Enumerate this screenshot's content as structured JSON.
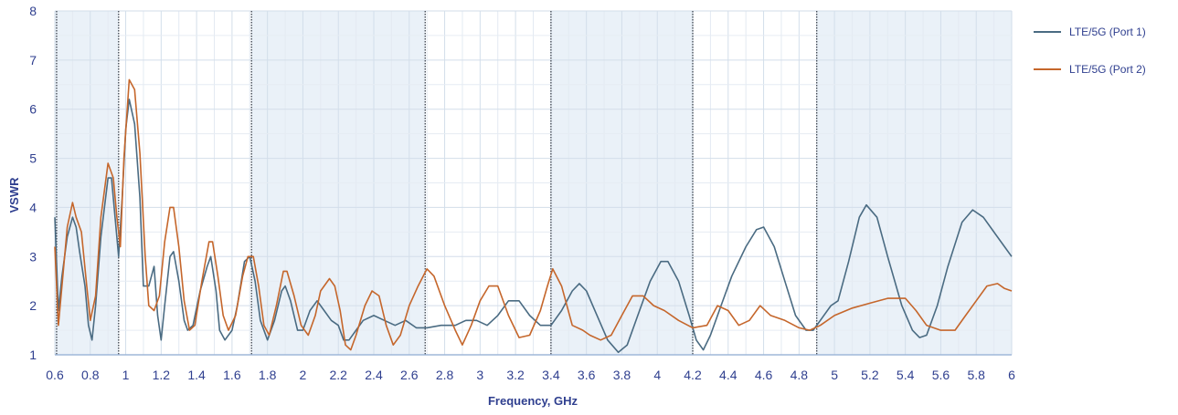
{
  "chart_data": {
    "type": "line",
    "title": "",
    "xlabel": "Frequency, GHz",
    "ylabel": "VSWR",
    "xlim": [
      0.6,
      6.0
    ],
    "ylim": [
      1,
      8
    ],
    "x_ticks": [
      "0.6",
      "0.8",
      "1",
      "1.2",
      "1.4",
      "1.6",
      "1.8",
      "2",
      "2.2",
      "2.4",
      "2.6",
      "2.8",
      "3",
      "3.2",
      "3.4",
      "3.6",
      "3.8",
      "4",
      "4.2",
      "4.4",
      "4.6",
      "4.8",
      "5",
      "5.2",
      "5.4",
      "5.6",
      "5.8",
      "6"
    ],
    "y_ticks": [
      "1",
      "2",
      "3",
      "4",
      "5",
      "6",
      "7",
      "8"
    ],
    "grid": true,
    "legend_position": "right",
    "shaded_bands": [
      [
        0.6,
        0.96
      ],
      [
        1.71,
        2.69
      ],
      [
        3.4,
        4.2
      ],
      [
        4.9,
        6.0
      ]
    ],
    "band_edges": [
      0.61,
      0.96,
      1.71,
      2.69,
      3.4,
      4.2,
      4.9
    ],
    "series": [
      {
        "name": "LTE/5G (Port 1)",
        "color": "#4a6b82",
        "points": [
          [
            0.6,
            3.8
          ],
          [
            0.62,
            1.9
          ],
          [
            0.64,
            2.6
          ],
          [
            0.67,
            3.4
          ],
          [
            0.7,
            3.8
          ],
          [
            0.72,
            3.6
          ],
          [
            0.74,
            3.1
          ],
          [
            0.77,
            2.4
          ],
          [
            0.79,
            1.6
          ],
          [
            0.81,
            1.3
          ],
          [
            0.83,
            2.0
          ],
          [
            0.86,
            3.4
          ],
          [
            0.9,
            4.6
          ],
          [
            0.92,
            4.6
          ],
          [
            0.94,
            3.8
          ],
          [
            0.96,
            3.0
          ],
          [
            0.98,
            4.2
          ],
          [
            1.0,
            5.6
          ],
          [
            1.02,
            6.2
          ],
          [
            1.05,
            5.7
          ],
          [
            1.08,
            4.2
          ],
          [
            1.1,
            2.4
          ],
          [
            1.13,
            2.4
          ],
          [
            1.16,
            2.8
          ],
          [
            1.18,
            1.8
          ],
          [
            1.2,
            1.3
          ],
          [
            1.22,
            2.0
          ],
          [
            1.25,
            3.0
          ],
          [
            1.27,
            3.1
          ],
          [
            1.3,
            2.5
          ],
          [
            1.33,
            1.7
          ],
          [
            1.35,
            1.5
          ],
          [
            1.38,
            1.6
          ],
          [
            1.42,
            2.3
          ],
          [
            1.46,
            2.8
          ],
          [
            1.48,
            3.0
          ],
          [
            1.51,
            2.3
          ],
          [
            1.53,
            1.5
          ],
          [
            1.56,
            1.3
          ],
          [
            1.6,
            1.5
          ],
          [
            1.63,
            2.0
          ],
          [
            1.67,
            2.9
          ],
          [
            1.7,
            3.0
          ],
          [
            1.73,
            2.5
          ],
          [
            1.76,
            1.7
          ],
          [
            1.8,
            1.3
          ],
          [
            1.84,
            1.7
          ],
          [
            1.88,
            2.3
          ],
          [
            1.9,
            2.4
          ],
          [
            1.93,
            2.1
          ],
          [
            1.97,
            1.5
          ],
          [
            2.0,
            1.5
          ],
          [
            2.04,
            1.9
          ],
          [
            2.08,
            2.1
          ],
          [
            2.12,
            1.9
          ],
          [
            2.16,
            1.7
          ],
          [
            2.2,
            1.6
          ],
          [
            2.23,
            1.3
          ],
          [
            2.26,
            1.3
          ],
          [
            2.3,
            1.5
          ],
          [
            2.34,
            1.7
          ],
          [
            2.4,
            1.8
          ],
          [
            2.46,
            1.7
          ],
          [
            2.52,
            1.6
          ],
          [
            2.58,
            1.7
          ],
          [
            2.64,
            1.55
          ],
          [
            2.7,
            1.55
          ],
          [
            2.78,
            1.6
          ],
          [
            2.86,
            1.6
          ],
          [
            2.92,
            1.7
          ],
          [
            2.98,
            1.7
          ],
          [
            3.04,
            1.6
          ],
          [
            3.1,
            1.8
          ],
          [
            3.16,
            2.1
          ],
          [
            3.22,
            2.1
          ],
          [
            3.28,
            1.8
          ],
          [
            3.34,
            1.6
          ],
          [
            3.4,
            1.6
          ],
          [
            3.46,
            1.9
          ],
          [
            3.52,
            2.3
          ],
          [
            3.56,
            2.45
          ],
          [
            3.6,
            2.3
          ],
          [
            3.66,
            1.8
          ],
          [
            3.72,
            1.3
          ],
          [
            3.78,
            1.05
          ],
          [
            3.83,
            1.2
          ],
          [
            3.9,
            1.9
          ],
          [
            3.96,
            2.5
          ],
          [
            4.02,
            2.9
          ],
          [
            4.06,
            2.9
          ],
          [
            4.12,
            2.5
          ],
          [
            4.18,
            1.8
          ],
          [
            4.22,
            1.3
          ],
          [
            4.26,
            1.1
          ],
          [
            4.3,
            1.4
          ],
          [
            4.36,
            2.0
          ],
          [
            4.42,
            2.6
          ],
          [
            4.5,
            3.2
          ],
          [
            4.56,
            3.55
          ],
          [
            4.6,
            3.6
          ],
          [
            4.66,
            3.2
          ],
          [
            4.72,
            2.5
          ],
          [
            4.78,
            1.8
          ],
          [
            4.84,
            1.5
          ],
          [
            4.88,
            1.5
          ],
          [
            4.92,
            1.7
          ],
          [
            4.98,
            2.0
          ],
          [
            5.02,
            2.1
          ],
          [
            5.08,
            2.9
          ],
          [
            5.14,
            3.8
          ],
          [
            5.18,
            4.05
          ],
          [
            5.24,
            3.8
          ],
          [
            5.3,
            3.0
          ],
          [
            5.38,
            2.0
          ],
          [
            5.44,
            1.5
          ],
          [
            5.48,
            1.35
          ],
          [
            5.52,
            1.4
          ],
          [
            5.58,
            2.0
          ],
          [
            5.64,
            2.8
          ],
          [
            5.72,
            3.7
          ],
          [
            5.78,
            3.95
          ],
          [
            5.84,
            3.8
          ],
          [
            5.9,
            3.5
          ],
          [
            5.96,
            3.2
          ],
          [
            6.0,
            3.0
          ]
        ]
      },
      {
        "name": "LTE/5G (Port 2)",
        "color": "#c5662b",
        "points": [
          [
            0.6,
            3.2
          ],
          [
            0.62,
            1.6
          ],
          [
            0.64,
            2.4
          ],
          [
            0.67,
            3.6
          ],
          [
            0.7,
            4.1
          ],
          [
            0.72,
            3.8
          ],
          [
            0.75,
            3.5
          ],
          [
            0.78,
            2.4
          ],
          [
            0.8,
            1.7
          ],
          [
            0.83,
            2.2
          ],
          [
            0.86,
            3.8
          ],
          [
            0.9,
            4.9
          ],
          [
            0.93,
            4.6
          ],
          [
            0.95,
            3.8
          ],
          [
            0.97,
            3.2
          ],
          [
            0.99,
            5.0
          ],
          [
            1.02,
            6.6
          ],
          [
            1.05,
            6.4
          ],
          [
            1.08,
            5.1
          ],
          [
            1.11,
            3.0
          ],
          [
            1.13,
            2.0
          ],
          [
            1.16,
            1.9
          ],
          [
            1.19,
            2.2
          ],
          [
            1.22,
            3.3
          ],
          [
            1.25,
            4.0
          ],
          [
            1.27,
            4.0
          ],
          [
            1.3,
            3.2
          ],
          [
            1.33,
            2.1
          ],
          [
            1.36,
            1.5
          ],
          [
            1.39,
            1.6
          ],
          [
            1.43,
            2.5
          ],
          [
            1.47,
            3.3
          ],
          [
            1.49,
            3.3
          ],
          [
            1.52,
            2.6
          ],
          [
            1.55,
            1.8
          ],
          [
            1.58,
            1.5
          ],
          [
            1.62,
            1.8
          ],
          [
            1.66,
            2.6
          ],
          [
            1.69,
            3.0
          ],
          [
            1.72,
            3.0
          ],
          [
            1.75,
            2.4
          ],
          [
            1.78,
            1.6
          ],
          [
            1.81,
            1.4
          ],
          [
            1.85,
            2.0
          ],
          [
            1.89,
            2.7
          ],
          [
            1.91,
            2.7
          ],
          [
            1.95,
            2.2
          ],
          [
            1.99,
            1.6
          ],
          [
            2.03,
            1.4
          ],
          [
            2.07,
            1.8
          ],
          [
            2.1,
            2.3
          ],
          [
            2.15,
            2.55
          ],
          [
            2.18,
            2.4
          ],
          [
            2.21,
            1.9
          ],
          [
            2.24,
            1.2
          ],
          [
            2.27,
            1.1
          ],
          [
            2.3,
            1.4
          ],
          [
            2.35,
            2.0
          ],
          [
            2.39,
            2.3
          ],
          [
            2.43,
            2.2
          ],
          [
            2.47,
            1.6
          ],
          [
            2.51,
            1.2
          ],
          [
            2.55,
            1.4
          ],
          [
            2.6,
            2.0
          ],
          [
            2.65,
            2.4
          ],
          [
            2.7,
            2.75
          ],
          [
            2.74,
            2.6
          ],
          [
            2.8,
            2.0
          ],
          [
            2.86,
            1.5
          ],
          [
            2.9,
            1.2
          ],
          [
            2.95,
            1.6
          ],
          [
            3.0,
            2.1
          ],
          [
            3.05,
            2.4
          ],
          [
            3.1,
            2.4
          ],
          [
            3.16,
            1.8
          ],
          [
            3.22,
            1.35
          ],
          [
            3.28,
            1.4
          ],
          [
            3.34,
            1.9
          ],
          [
            3.38,
            2.4
          ],
          [
            3.41,
            2.75
          ],
          [
            3.46,
            2.4
          ],
          [
            3.52,
            1.6
          ],
          [
            3.58,
            1.5
          ],
          [
            3.62,
            1.4
          ],
          [
            3.68,
            1.3
          ],
          [
            3.74,
            1.4
          ],
          [
            3.8,
            1.8
          ],
          [
            3.86,
            2.2
          ],
          [
            3.92,
            2.2
          ],
          [
            3.98,
            2.0
          ],
          [
            4.04,
            1.9
          ],
          [
            4.12,
            1.7
          ],
          [
            4.2,
            1.55
          ],
          [
            4.28,
            1.6
          ],
          [
            4.34,
            2.0
          ],
          [
            4.4,
            1.9
          ],
          [
            4.46,
            1.6
          ],
          [
            4.52,
            1.7
          ],
          [
            4.58,
            2.0
          ],
          [
            4.64,
            1.8
          ],
          [
            4.72,
            1.7
          ],
          [
            4.8,
            1.55
          ],
          [
            4.86,
            1.5
          ],
          [
            4.92,
            1.6
          ],
          [
            5.0,
            1.8
          ],
          [
            5.1,
            1.95
          ],
          [
            5.2,
            2.05
          ],
          [
            5.3,
            2.15
          ],
          [
            5.4,
            2.15
          ],
          [
            5.46,
            1.9
          ],
          [
            5.52,
            1.6
          ],
          [
            5.6,
            1.5
          ],
          [
            5.68,
            1.5
          ],
          [
            5.74,
            1.8
          ],
          [
            5.8,
            2.1
          ],
          [
            5.86,
            2.4
          ],
          [
            5.92,
            2.45
          ],
          [
            5.96,
            2.35
          ],
          [
            6.0,
            2.3
          ]
        ]
      }
    ]
  }
}
